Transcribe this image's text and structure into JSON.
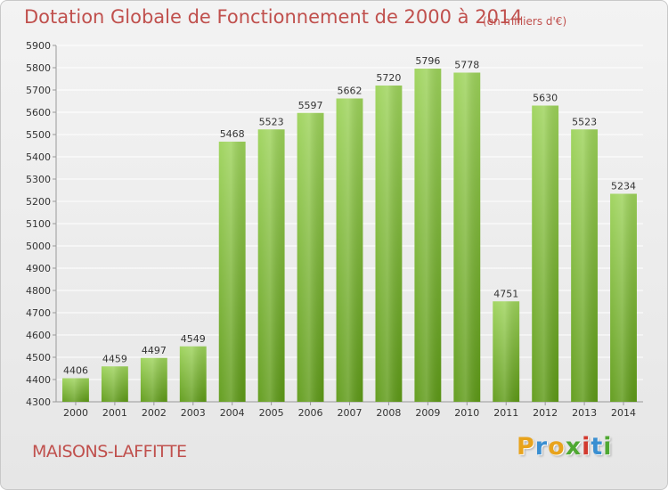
{
  "chart_data": {
    "type": "bar",
    "title": "Dotation Globale de Fonctionnement de 2000 à 2014",
    "units_note": "(en milliers d'€)",
    "categories": [
      "2000",
      "2001",
      "2002",
      "2003",
      "2004",
      "2005",
      "2006",
      "2007",
      "2008",
      "2009",
      "2010",
      "2011",
      "2012",
      "2013",
      "2014"
    ],
    "values": [
      4406,
      4459,
      4497,
      4549,
      5468,
      5523,
      5597,
      5662,
      5720,
      5796,
      5778,
      4751,
      5630,
      5523,
      5234
    ],
    "ylim": [
      4300,
      5900
    ],
    "ytick_step": 100,
    "grid": true,
    "xlabel": "",
    "ylabel": "",
    "bar_color_top": "#9dd35a",
    "bar_color_bottom": "#5e9a17"
  },
  "footer": {
    "commune": "MAISONS-LAFFITTE",
    "logo_letters": [
      "P",
      "r",
      "o",
      "x",
      "i",
      "t",
      "i"
    ],
    "logo_colors": [
      "#e8a31c",
      "#3a8fd1",
      "#e8a31c",
      "#4fa832",
      "#d23a2f",
      "#3a8fd1",
      "#4fa832"
    ]
  }
}
